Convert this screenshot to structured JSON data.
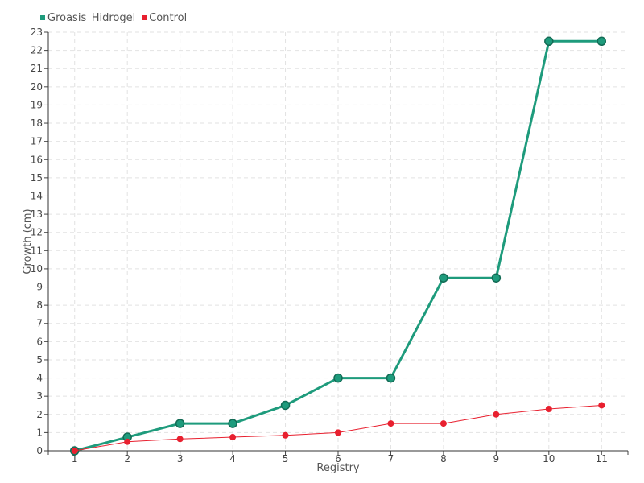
{
  "chart_data": {
    "type": "line",
    "title": "",
    "xlabel": "Registry",
    "ylabel": "Growth (cm)",
    "categories": [
      "1",
      "2",
      "3",
      "4",
      "5",
      "6",
      "7",
      "8",
      "9",
      "10",
      "11"
    ],
    "ylim": [
      0,
      23
    ],
    "yticks": [
      0,
      1,
      2,
      3,
      4,
      5,
      6,
      7,
      8,
      9,
      10,
      11,
      12,
      13,
      14,
      15,
      16,
      17,
      18,
      19,
      20,
      21,
      22,
      23
    ],
    "grid": true,
    "legend_position": "top-left",
    "series": [
      {
        "name": "Groasis_Hidrogel",
        "color": "#1e9b7c",
        "values": [
          0,
          0.75,
          1.5,
          1.5,
          2.5,
          4,
          4,
          9.5,
          9.5,
          22.5,
          22.5
        ]
      },
      {
        "name": "Control",
        "color": "#e8202f",
        "values": [
          0,
          0.5,
          0.65,
          0.75,
          0.85,
          1,
          1.5,
          1.5,
          2,
          2.3,
          2.5
        ]
      }
    ]
  }
}
